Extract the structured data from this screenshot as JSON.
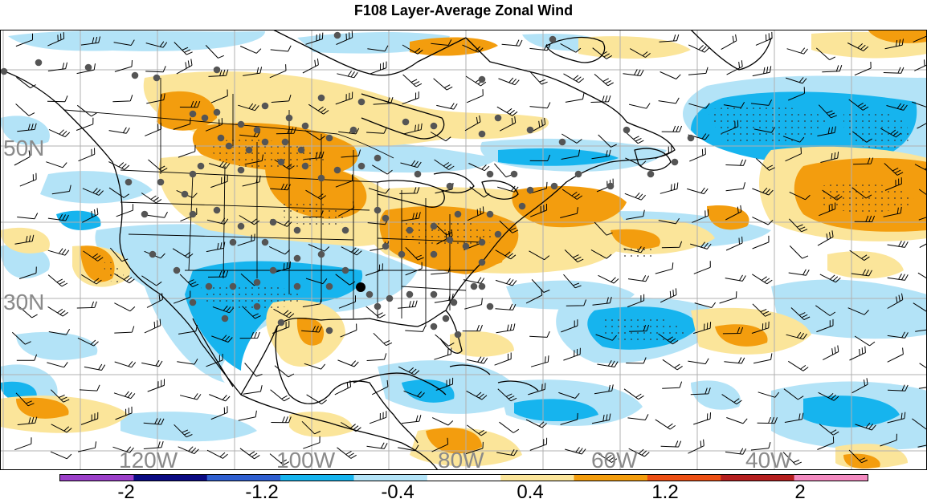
{
  "title": "F108 Layer-Average Zonal Wind",
  "map": {
    "latitude_labels": [
      "50N",
      "30N"
    ],
    "longitude_labels": [
      "120W",
      "100W",
      "80W",
      "60W",
      "40W"
    ]
  },
  "colorbar": {
    "tick_labels": [
      "-2",
      "-1.2",
      "-0.4",
      "0.4",
      "1.2",
      "2"
    ],
    "colors": [
      "#9b3fc9",
      "#0a0a82",
      "#2f5fd0",
      "#16b4ee",
      "#b3e3f7",
      "#ffffff",
      "#fbe59a",
      "#f39d0e",
      "#ec4f14",
      "#b51f1f",
      "#f38ac0"
    ]
  },
  "colors": {
    "strong_negative": "#16b4ee",
    "weak_negative": "#b3e3f7",
    "weak_positive": "#fbe59a",
    "strong_positive": "#f39d0e",
    "station": "#555555"
  }
}
